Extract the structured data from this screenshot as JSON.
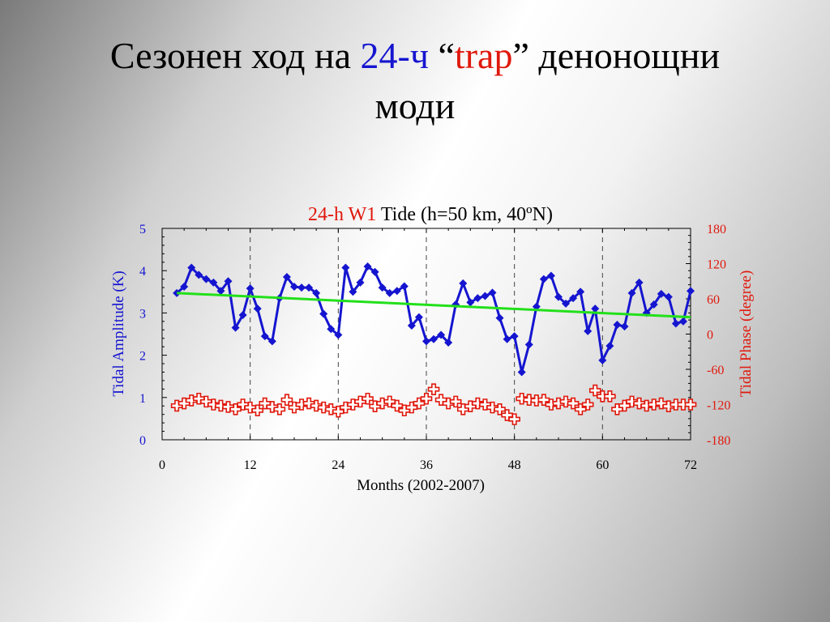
{
  "slide": {
    "title_part1": "Сезонен ход на ",
    "title_part2": "24-ч",
    "title_part3": " “",
    "title_part4": "trap",
    "title_part5": "” денонощни",
    "title_line2": "моди"
  },
  "colors": {
    "amplitude": "#1515d0",
    "phase": "#e0180c",
    "trend": "#22e01a",
    "axis": "#000000"
  },
  "chart_data": {
    "type": "line",
    "title_part1": "24-h W1",
    "title_part2": " Tide (h=50 km, 40ºN)",
    "xlabel": "Months (2002-2007)",
    "ylabel_left": "Tidal Amplitude (K)",
    "ylabel_right": "Tidal Phase (degree)",
    "xlim": [
      0,
      72
    ],
    "ylim_left": [
      0,
      5
    ],
    "ylim_right": [
      -180,
      180
    ],
    "x_ticks": [
      "0",
      "12",
      "24",
      "36",
      "48",
      "60",
      "72"
    ],
    "y_left_ticks": [
      "0",
      "1",
      "2",
      "3",
      "4",
      "5"
    ],
    "y_right_ticks": [
      "-180",
      "-120",
      "-60",
      "0",
      "60",
      "120",
      "180"
    ],
    "grid": "dashed vertical lines every 12 months",
    "series": [
      {
        "axis": "left",
        "marker": "diamond",
        "x": [
          2,
          3,
          4,
          5,
          6,
          7,
          8,
          9,
          10,
          11,
          12,
          13,
          14,
          15,
          16,
          17,
          18,
          19,
          20,
          21,
          22,
          23,
          24,
          25,
          26,
          27,
          28,
          29,
          30,
          31,
          32,
          33,
          34,
          35,
          36,
          37,
          38,
          39,
          40,
          41,
          42,
          43,
          44,
          45,
          46,
          47,
          48,
          49,
          50,
          51,
          52,
          53,
          54,
          55,
          56,
          57,
          58,
          59,
          60,
          61,
          62,
          63,
          64,
          65,
          66,
          67,
          68,
          69,
          70,
          71,
          72
        ],
        "values": [
          3.47,
          3.62,
          4.07,
          3.9,
          3.8,
          3.72,
          3.52,
          3.75,
          2.65,
          2.95,
          3.58,
          3.1,
          2.45,
          2.33,
          3.35,
          3.85,
          3.62,
          3.6,
          3.6,
          3.47,
          2.98,
          2.62,
          2.48,
          4.07,
          3.5,
          3.72,
          4.1,
          3.97,
          3.6,
          3.47,
          3.52,
          3.63,
          2.7,
          2.9,
          2.33,
          2.38,
          2.48,
          2.3,
          3.2,
          3.7,
          3.25,
          3.35,
          3.4,
          3.48,
          2.88,
          2.38,
          2.45,
          1.6,
          2.25,
          3.15,
          3.8,
          3.88,
          3.38,
          3.22,
          3.35,
          3.5,
          2.57,
          3.1,
          1.88,
          2.22,
          2.72,
          2.68,
          3.47,
          3.72,
          3.0,
          3.2,
          3.45,
          3.38,
          2.75,
          2.8,
          3.52
        ]
      },
      {
        "axis": "left",
        "marker": "none",
        "trend": true,
        "x": [
          2,
          72
        ],
        "values": [
          3.47,
          2.9
        ]
      },
      {
        "axis": "right",
        "marker": "cross",
        "x": [
          2,
          3,
          4,
          5,
          6,
          7,
          8,
          9,
          10,
          11,
          12,
          13,
          14,
          15,
          16,
          17,
          18,
          19,
          20,
          21,
          22,
          23,
          24,
          25,
          26,
          27,
          28,
          29,
          30,
          31,
          32,
          33,
          34,
          35,
          36,
          37,
          38,
          39,
          40,
          41,
          42,
          43,
          44,
          45,
          46,
          47,
          48,
          49,
          50,
          51,
          52,
          53,
          54,
          55,
          56,
          57,
          58,
          59,
          60,
          61,
          62,
          63,
          64,
          65,
          66,
          67,
          68,
          69,
          70,
          71,
          72
        ],
        "values": [
          -122,
          -118,
          -113,
          -110,
          -115,
          -120,
          -122,
          -124,
          -128,
          -120,
          -125,
          -130,
          -118,
          -124,
          -128,
          -112,
          -125,
          -120,
          -118,
          -122,
          -125,
          -128,
          -132,
          -125,
          -120,
          -115,
          -110,
          -123,
          -118,
          -115,
          -122,
          -130,
          -125,
          -118,
          -110,
          -94,
          -112,
          -118,
          -115,
          -128,
          -123,
          -118,
          -120,
          -125,
          -128,
          -138,
          -145,
          -110,
          -112,
          -113,
          -112,
          -120,
          -118,
          -115,
          -118,
          -128,
          -120,
          -96,
          -106,
          -106,
          -128,
          -122,
          -115,
          -118,
          -122,
          -120,
          -118,
          -123,
          -120,
          -120,
          -120
        ]
      }
    ]
  }
}
